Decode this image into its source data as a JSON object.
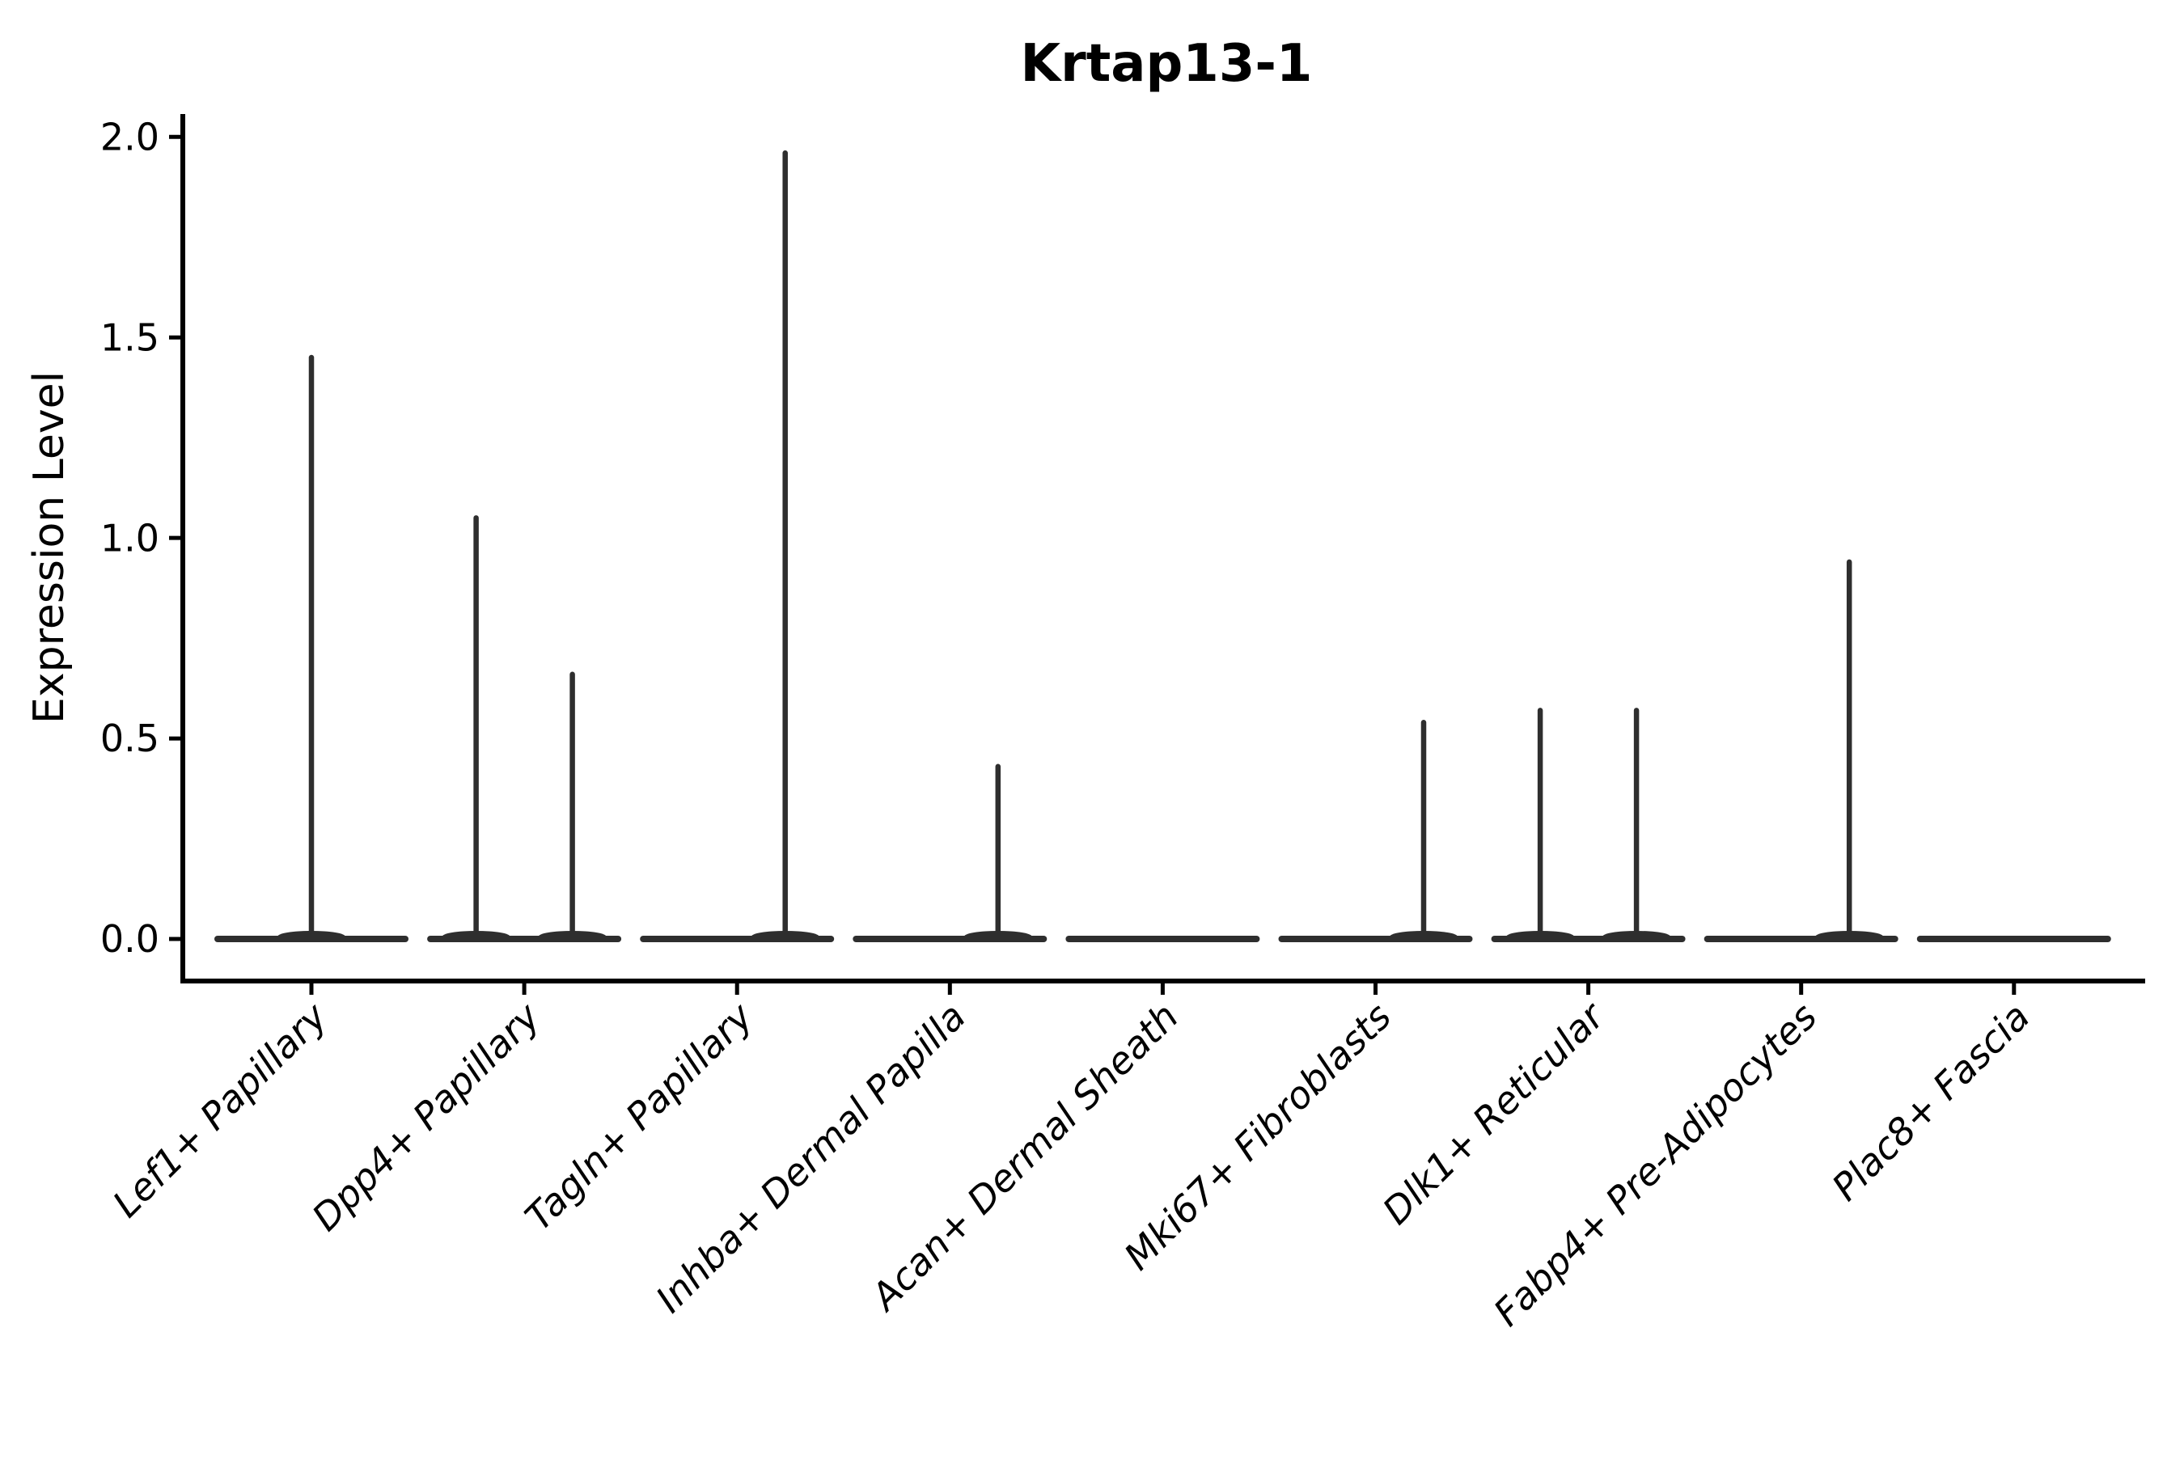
{
  "title": "Krtap13-1",
  "ylabel": "Expression Level",
  "chart_data": {
    "type": "violin",
    "title": "Krtap13-1",
    "xlabel": "",
    "ylabel": "Expression Level",
    "ylim": [
      -0.1,
      2.06
    ],
    "yticks": [
      0.0,
      0.5,
      1.0,
      1.5,
      2.0
    ],
    "ytick_labels": [
      "0.0",
      "0.5",
      "1.0",
      "1.5",
      "2.0"
    ],
    "grid": false,
    "legend": "none",
    "baseline_value": 0.0,
    "categories": [
      "Lef1+ Papillary",
      "Dpp4+ Papillary",
      "Tagln+ Papillary",
      "Inhba+ Dermal Papilla",
      "Acan+ Dermal Sheath",
      "Mki67+ Fibroblasts",
      "Dlk1+ Reticular",
      "Fabp4+ Pre-Adipocytes",
      "Plac8+ Fascia"
    ],
    "violins": [
      {
        "category": "Lef1+ Papillary",
        "body": "flat-at-zero",
        "spikes": [
          {
            "offset": 0,
            "max": 1.45
          }
        ]
      },
      {
        "category": "Dpp4+ Papillary",
        "body": "flat-at-zero",
        "spikes": [
          {
            "offset": -1,
            "max": 1.05
          },
          {
            "offset": 1,
            "max": 0.66
          }
        ]
      },
      {
        "category": "Tagln+ Papillary",
        "body": "flat-at-zero",
        "spikes": [
          {
            "offset": 1,
            "max": 1.96
          }
        ]
      },
      {
        "category": "Inhba+ Dermal Papilla",
        "body": "flat-at-zero",
        "spikes": [
          {
            "offset": 1,
            "max": 0.43
          }
        ]
      },
      {
        "category": "Acan+ Dermal Sheath",
        "body": "flat-at-zero",
        "spikes": []
      },
      {
        "category": "Mki67+ Fibroblasts",
        "body": "flat-at-zero",
        "spikes": [
          {
            "offset": 1,
            "max": 0.54
          }
        ]
      },
      {
        "category": "Dlk1+ Reticular",
        "body": "flat-at-zero",
        "spikes": [
          {
            "offset": -1,
            "max": 0.57
          },
          {
            "offset": 1,
            "max": 0.57
          }
        ]
      },
      {
        "category": "Fabp4+ Pre-Adipocytes",
        "body": "flat-at-zero",
        "spikes": [
          {
            "offset": 1,
            "max": 0.94
          }
        ]
      },
      {
        "category": "Plac8+ Fascia",
        "body": "flat-at-zero",
        "spikes": []
      }
    ],
    "colors": {
      "violin": "#2e2e2e",
      "axis": "#000000",
      "background": "#ffffff"
    }
  }
}
